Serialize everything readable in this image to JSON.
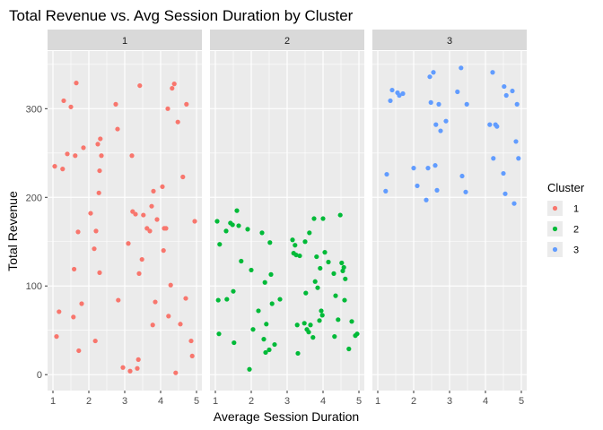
{
  "chart_data": {
    "type": "scatter",
    "title": "Total Revenue vs. Avg Session Duration by Cluster",
    "xlabel": "Average Session Duration",
    "ylabel": "Total Revenue",
    "xlim": [
      0.85,
      5.15
    ],
    "ylim": [
      -18,
      365
    ],
    "x_ticks": [
      1,
      2,
      3,
      4,
      5
    ],
    "y_ticks": [
      0,
      100,
      200,
      300
    ],
    "grid": true,
    "legend": {
      "title": "Cluster",
      "position": "right"
    },
    "panels": [
      {
        "label": "1",
        "color": "#F8766D",
        "points": [
          {
            "x": 1.05,
            "y": 235
          },
          {
            "x": 1.1,
            "y": 43
          },
          {
            "x": 1.17,
            "y": 71
          },
          {
            "x": 1.27,
            "y": 232
          },
          {
            "x": 1.3,
            "y": 309
          },
          {
            "x": 1.4,
            "y": 249
          },
          {
            "x": 1.5,
            "y": 302
          },
          {
            "x": 1.57,
            "y": 65
          },
          {
            "x": 1.59,
            "y": 119
          },
          {
            "x": 1.62,
            "y": 247
          },
          {
            "x": 1.65,
            "y": 329
          },
          {
            "x": 1.7,
            "y": 161
          },
          {
            "x": 1.72,
            "y": 27
          },
          {
            "x": 1.8,
            "y": 80
          },
          {
            "x": 1.85,
            "y": 256
          },
          {
            "x": 2.05,
            "y": 182
          },
          {
            "x": 2.15,
            "y": 142
          },
          {
            "x": 2.18,
            "y": 38
          },
          {
            "x": 2.2,
            "y": 162
          },
          {
            "x": 2.25,
            "y": 260
          },
          {
            "x": 2.28,
            "y": 205
          },
          {
            "x": 2.3,
            "y": 115
          },
          {
            "x": 2.32,
            "y": 266
          },
          {
            "x": 2.35,
            "y": 247
          },
          {
            "x": 2.3,
            "y": 230
          },
          {
            "x": 2.75,
            "y": 305
          },
          {
            "x": 2.8,
            "y": 277
          },
          {
            "x": 2.82,
            "y": 84
          },
          {
            "x": 2.95,
            "y": 8
          },
          {
            "x": 3.1,
            "y": 148
          },
          {
            "x": 3.15,
            "y": 4
          },
          {
            "x": 3.2,
            "y": 247
          },
          {
            "x": 3.22,
            "y": 184
          },
          {
            "x": 3.3,
            "y": 181
          },
          {
            "x": 3.35,
            "y": 7
          },
          {
            "x": 3.38,
            "y": 17
          },
          {
            "x": 3.4,
            "y": 114
          },
          {
            "x": 3.42,
            "y": 326
          },
          {
            "x": 3.48,
            "y": 130
          },
          {
            "x": 3.52,
            "y": 180
          },
          {
            "x": 3.62,
            "y": 165
          },
          {
            "x": 3.7,
            "y": 162
          },
          {
            "x": 3.75,
            "y": 190
          },
          {
            "x": 3.78,
            "y": 56
          },
          {
            "x": 3.8,
            "y": 207
          },
          {
            "x": 3.85,
            "y": 82
          },
          {
            "x": 3.9,
            "y": 175
          },
          {
            "x": 4.05,
            "y": 212
          },
          {
            "x": 4.08,
            "y": 140
          },
          {
            "x": 4.1,
            "y": 165
          },
          {
            "x": 4.15,
            "y": 165
          },
          {
            "x": 4.2,
            "y": 300
          },
          {
            "x": 4.22,
            "y": 66
          },
          {
            "x": 4.28,
            "y": 101
          },
          {
            "x": 4.32,
            "y": 323
          },
          {
            "x": 4.38,
            "y": 328
          },
          {
            "x": 4.42,
            "y": 2
          },
          {
            "x": 4.48,
            "y": 285
          },
          {
            "x": 4.55,
            "y": 57
          },
          {
            "x": 4.7,
            "y": 86
          },
          {
            "x": 4.72,
            "y": 305
          },
          {
            "x": 4.62,
            "y": 223
          },
          {
            "x": 4.85,
            "y": 38
          },
          {
            "x": 4.88,
            "y": 21
          },
          {
            "x": 4.95,
            "y": 173
          }
        ]
      },
      {
        "label": "2",
        "color": "#00BA38",
        "points": [
          {
            "x": 1.05,
            "y": 173
          },
          {
            "x": 1.08,
            "y": 84
          },
          {
            "x": 1.1,
            "y": 46
          },
          {
            "x": 1.12,
            "y": 147
          },
          {
            "x": 1.3,
            "y": 162
          },
          {
            "x": 1.32,
            "y": 85
          },
          {
            "x": 1.42,
            "y": 171
          },
          {
            "x": 1.48,
            "y": 169
          },
          {
            "x": 1.5,
            "y": 94
          },
          {
            "x": 1.52,
            "y": 36
          },
          {
            "x": 1.6,
            "y": 185
          },
          {
            "x": 1.65,
            "y": 168
          },
          {
            "x": 1.72,
            "y": 128
          },
          {
            "x": 1.9,
            "y": 164
          },
          {
            "x": 1.95,
            "y": 6
          },
          {
            "x": 2.0,
            "y": 118
          },
          {
            "x": 2.05,
            "y": 51
          },
          {
            "x": 2.2,
            "y": 72
          },
          {
            "x": 2.3,
            "y": 160
          },
          {
            "x": 2.35,
            "y": 40
          },
          {
            "x": 2.38,
            "y": 104
          },
          {
            "x": 2.4,
            "y": 25
          },
          {
            "x": 2.42,
            "y": 57
          },
          {
            "x": 2.5,
            "y": 28
          },
          {
            "x": 2.52,
            "y": 149
          },
          {
            "x": 2.55,
            "y": 113
          },
          {
            "x": 2.58,
            "y": 80
          },
          {
            "x": 2.65,
            "y": 34
          },
          {
            "x": 2.8,
            "y": 85
          },
          {
            "x": 3.15,
            "y": 152
          },
          {
            "x": 3.18,
            "y": 137
          },
          {
            "x": 3.22,
            "y": 146
          },
          {
            "x": 3.25,
            "y": 135
          },
          {
            "x": 3.28,
            "y": 56
          },
          {
            "x": 3.3,
            "y": 24
          },
          {
            "x": 3.35,
            "y": 134
          },
          {
            "x": 3.48,
            "y": 58
          },
          {
            "x": 3.5,
            "y": 150
          },
          {
            "x": 3.52,
            "y": 92
          },
          {
            "x": 3.55,
            "y": 51
          },
          {
            "x": 3.6,
            "y": 48
          },
          {
            "x": 3.62,
            "y": 160
          },
          {
            "x": 3.65,
            "y": 56
          },
          {
            "x": 3.72,
            "y": 42
          },
          {
            "x": 3.75,
            "y": 176
          },
          {
            "x": 3.78,
            "y": 105
          },
          {
            "x": 3.82,
            "y": 133
          },
          {
            "x": 3.85,
            "y": 98
          },
          {
            "x": 3.9,
            "y": 61
          },
          {
            "x": 3.92,
            "y": 120
          },
          {
            "x": 3.95,
            "y": 72
          },
          {
            "x": 3.98,
            "y": 67
          },
          {
            "x": 4.0,
            "y": 176
          },
          {
            "x": 4.05,
            "y": 138
          },
          {
            "x": 4.15,
            "y": 127
          },
          {
            "x": 4.3,
            "y": 114
          },
          {
            "x": 4.32,
            "y": 43
          },
          {
            "x": 4.35,
            "y": 89
          },
          {
            "x": 4.42,
            "y": 62
          },
          {
            "x": 4.48,
            "y": 180
          },
          {
            "x": 4.52,
            "y": 126
          },
          {
            "x": 4.55,
            "y": 117
          },
          {
            "x": 4.58,
            "y": 121
          },
          {
            "x": 4.6,
            "y": 84
          },
          {
            "x": 4.62,
            "y": 108
          },
          {
            "x": 4.72,
            "y": 29
          },
          {
            "x": 4.8,
            "y": 60
          },
          {
            "x": 4.9,
            "y": 44
          },
          {
            "x": 4.95,
            "y": 46
          }
        ]
      },
      {
        "label": "3",
        "color": "#619CFF",
        "points": [
          {
            "x": 1.25,
            "y": 226
          },
          {
            "x": 1.22,
            "y": 207
          },
          {
            "x": 1.35,
            "y": 309
          },
          {
            "x": 1.4,
            "y": 321
          },
          {
            "x": 1.55,
            "y": 318
          },
          {
            "x": 1.6,
            "y": 315
          },
          {
            "x": 1.7,
            "y": 317
          },
          {
            "x": 2.0,
            "y": 233
          },
          {
            "x": 2.1,
            "y": 213
          },
          {
            "x": 2.35,
            "y": 197
          },
          {
            "x": 2.4,
            "y": 233
          },
          {
            "x": 2.45,
            "y": 336
          },
          {
            "x": 2.48,
            "y": 307
          },
          {
            "x": 2.55,
            "y": 341
          },
          {
            "x": 2.6,
            "y": 236
          },
          {
            "x": 2.62,
            "y": 282
          },
          {
            "x": 2.65,
            "y": 208
          },
          {
            "x": 2.7,
            "y": 305
          },
          {
            "x": 2.75,
            "y": 275
          },
          {
            "x": 2.9,
            "y": 286
          },
          {
            "x": 3.22,
            "y": 319
          },
          {
            "x": 3.32,
            "y": 346
          },
          {
            "x": 3.35,
            "y": 224
          },
          {
            "x": 3.45,
            "y": 206
          },
          {
            "x": 3.48,
            "y": 305
          },
          {
            "x": 4.12,
            "y": 282
          },
          {
            "x": 4.2,
            "y": 341
          },
          {
            "x": 4.22,
            "y": 244
          },
          {
            "x": 4.28,
            "y": 282
          },
          {
            "x": 4.32,
            "y": 280
          },
          {
            "x": 4.5,
            "y": 227
          },
          {
            "x": 4.52,
            "y": 325
          },
          {
            "x": 4.55,
            "y": 204
          },
          {
            "x": 4.58,
            "y": 315
          },
          {
            "x": 4.75,
            "y": 320
          },
          {
            "x": 4.8,
            "y": 193
          },
          {
            "x": 4.85,
            "y": 263
          },
          {
            "x": 4.88,
            "y": 305
          },
          {
            "x": 4.92,
            "y": 244
          }
        ]
      }
    ]
  }
}
